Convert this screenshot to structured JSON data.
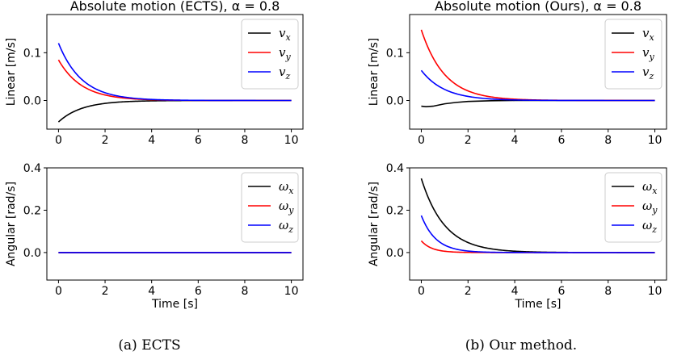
{
  "panels": [
    {
      "id": "a",
      "caption": "(a) ECTS"
    },
    {
      "id": "b",
      "caption": "(b) Our method."
    }
  ],
  "chart_data": [
    {
      "type": "line",
      "panel": "a",
      "title": "Absolute motion (ECTS), α = 0.8",
      "xlabel": "",
      "ylabel": "Linear [m/s]",
      "xlim": [
        -0.5,
        10.5
      ],
      "ylim": [
        -0.06,
        0.18
      ],
      "xticks": [
        0,
        2,
        4,
        6,
        8,
        10
      ],
      "yticks": [
        0.0,
        0.1
      ],
      "legend_position": "top-right",
      "series": [
        {
          "name": "v_x",
          "color": "#000000",
          "x0": 0.0,
          "y0": -0.045,
          "decay": 1.0
        },
        {
          "name": "v_y",
          "color": "#ff0000",
          "x0": 0.0,
          "y0": 0.085,
          "decay": 1.0
        },
        {
          "name": "v_z",
          "color": "#0000ff",
          "x0": 0.0,
          "y0": 0.12,
          "decay": 1.0
        }
      ]
    },
    {
      "type": "line",
      "panel": "b",
      "title": "Absolute motion (Ours), α = 0.8",
      "xlabel": "",
      "ylabel": "Linear [m/s]",
      "xlim": [
        -0.5,
        10.5
      ],
      "ylim": [
        -0.06,
        0.18
      ],
      "xticks": [
        0,
        2,
        4,
        6,
        8,
        10
      ],
      "yticks": [
        0.0,
        0.1
      ],
      "legend_position": "top-right",
      "series": [
        {
          "name": "v_x",
          "color": "#000000",
          "points": [
            [
              0,
              -0.012
            ],
            [
              0.2,
              -0.013
            ],
            [
              0.5,
              -0.012
            ],
            [
              1,
              -0.007
            ],
            [
              1.5,
              -0.004
            ],
            [
              2,
              -0.002
            ],
            [
              3,
              -0.0005
            ],
            [
              4,
              0
            ],
            [
              10,
              0
            ]
          ]
        },
        {
          "name": "v_y",
          "color": "#ff0000",
          "x0": 0.0,
          "y0": 0.148,
          "decay": 1.0
        },
        {
          "name": "v_z",
          "color": "#0000ff",
          "x0": 0.0,
          "y0": 0.063,
          "decay": 1.0
        }
      ]
    },
    {
      "type": "line",
      "panel": "a",
      "title": "",
      "xlabel": "Time [s]",
      "ylabel": "Angular [rad/s]",
      "xlim": [
        -0.5,
        10.5
      ],
      "ylim": [
        -0.13,
        0.4
      ],
      "xticks": [
        0,
        2,
        4,
        6,
        8,
        10
      ],
      "yticks": [
        0.0,
        0.2,
        0.4
      ],
      "legend_position": "top-right",
      "series": [
        {
          "name": "ω_x",
          "color": "#000000",
          "x0": 0.0,
          "y0": 0.0,
          "decay": 1.0
        },
        {
          "name": "ω_y",
          "color": "#ff0000",
          "x0": 0.0,
          "y0": 0.0,
          "decay": 1.0
        },
        {
          "name": "ω_z",
          "color": "#0000ff",
          "x0": 0.0,
          "y0": 0.0,
          "decay": 1.0
        }
      ]
    },
    {
      "type": "line",
      "panel": "b",
      "title": "",
      "xlabel": "Time [s]",
      "ylabel": "Angular [rad/s]",
      "xlim": [
        -0.5,
        10.5
      ],
      "ylim": [
        -0.13,
        0.4
      ],
      "xticks": [
        0,
        2,
        4,
        6,
        8,
        10
      ],
      "yticks": [
        0.0,
        0.2,
        0.4
      ],
      "legend_position": "top-right",
      "series": [
        {
          "name": "ω_x",
          "color": "#000000",
          "x0": 0.0,
          "y0": 0.35,
          "decay": 1.0
        },
        {
          "name": "ω_y",
          "color": "#ff0000",
          "x0": 0.0,
          "y0": 0.055,
          "decay": 2.2
        },
        {
          "name": "ω_z",
          "color": "#0000ff",
          "x0": 0.0,
          "y0": 0.175,
          "decay": 1.6
        }
      ]
    }
  ]
}
